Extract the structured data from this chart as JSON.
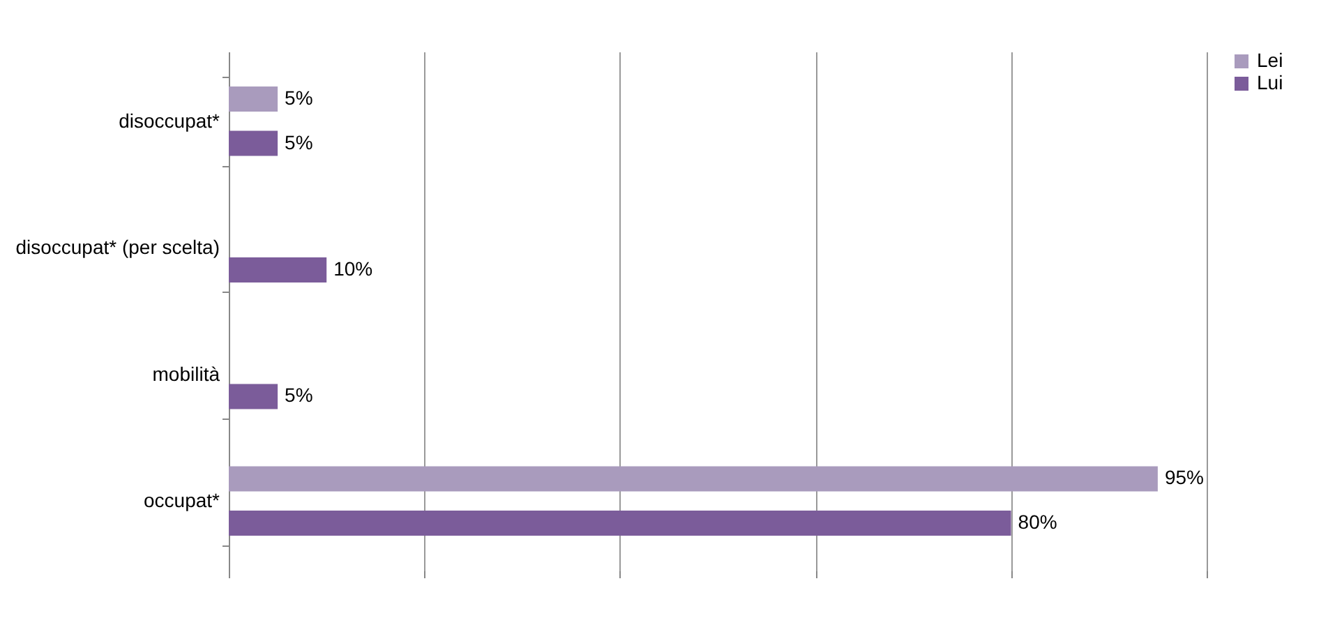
{
  "chart_data": {
    "type": "bar",
    "orientation": "horizontal",
    "categories": [
      "disoccupat*",
      "disoccupat* (per scelta)",
      "mobilità",
      "occupat*"
    ],
    "series": [
      {
        "name": "Lei",
        "color": "#a99bbd",
        "values": [
          5,
          null,
          null,
          95
        ],
        "value_labels": [
          "5%",
          null,
          null,
          "95%"
        ]
      },
      {
        "name": "Lui",
        "color": "#7b5c9a",
        "values": [
          5,
          10,
          5,
          80
        ],
        "value_labels": [
          "5%",
          "10%",
          "5%",
          "80%"
        ]
      }
    ],
    "xlim": [
      0,
      100
    ],
    "xticks": [
      {
        "value": 0,
        "label": null
      },
      {
        "value": 20,
        "label": null
      },
      {
        "value": 40,
        "label": null
      },
      {
        "value": 60,
        "label": null
      },
      {
        "value": 80,
        "label": null
      },
      {
        "value": 100,
        "label": null
      }
    ],
    "grid": "x",
    "legend": "right",
    "tick_labels": "y"
  }
}
